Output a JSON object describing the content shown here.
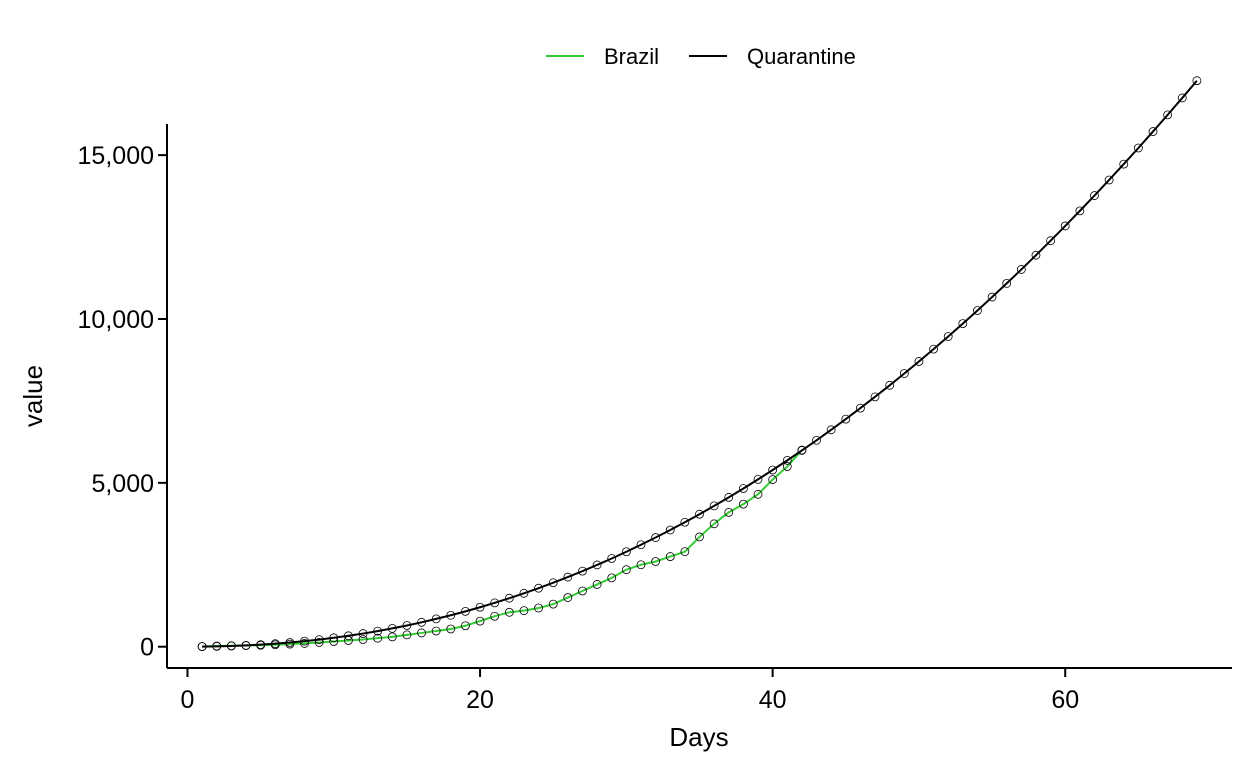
{
  "chart_data": {
    "type": "line",
    "xlabel": "Days",
    "ylabel": "value",
    "xlim": [
      -1.4,
      71.4
    ],
    "ylim": [
      -650,
      15950
    ],
    "x_ticks": [
      0,
      20,
      40,
      60
    ],
    "y_ticks": [
      0,
      5000,
      10000,
      15000
    ],
    "y_tick_labels": [
      "0",
      "5,000",
      "10,000",
      "15,000"
    ],
    "legend": {
      "position": "top",
      "entries": [
        "Brazil",
        "Quarantine"
      ]
    },
    "grid": false,
    "markers": "open-circle",
    "series": [
      {
        "name": "Brazil",
        "color": "#33cc33",
        "x": [
          1,
          2,
          3,
          4,
          5,
          6,
          7,
          8,
          9,
          10,
          11,
          12,
          13,
          14,
          15,
          16,
          17,
          18,
          19,
          20,
          21,
          22,
          23,
          24,
          25,
          26,
          27,
          28,
          29,
          30,
          31,
          32,
          33,
          34,
          35,
          36,
          37,
          38,
          39,
          40,
          41,
          42
        ],
        "y": [
          5,
          20,
          30,
          35,
          45,
          60,
          80,
          100,
          130,
          160,
          190,
          220,
          260,
          300,
          360,
          420,
          480,
          540,
          640,
          780,
          930,
          1050,
          1100,
          1180,
          1300,
          1500,
          1700,
          1900,
          2100,
          2350,
          2500,
          2600,
          2750,
          2900,
          3350,
          3750,
          4100,
          4350,
          4650,
          5100,
          5500,
          6000
        ]
      },
      {
        "name": "Quarantine",
        "color": "#000000",
        "x": [
          1,
          2,
          3,
          4,
          5,
          6,
          7,
          8,
          9,
          10,
          11,
          12,
          13,
          14,
          15,
          16,
          17,
          18,
          19,
          20,
          21,
          22,
          23,
          24,
          25,
          26,
          27,
          28,
          29,
          30,
          31,
          32,
          33,
          34,
          35,
          36,
          37,
          38,
          39,
          40,
          41,
          42,
          43,
          44,
          45,
          46,
          47,
          48,
          49,
          50,
          51,
          52,
          53,
          54,
          55,
          56,
          57,
          58,
          59,
          60,
          61,
          62,
          63,
          64,
          65,
          66,
          67,
          68,
          69
        ],
        "y": [
          3,
          10,
          22,
          40,
          63,
          92,
          128,
          169,
          217,
          272,
          333,
          401,
          476,
          558,
          647,
          744,
          848,
          959,
          1078,
          1204,
          1338,
          1480,
          1629,
          1786,
          1952,
          2125,
          2306,
          2495,
          2692,
          2897,
          3110,
          3331,
          3560,
          3798,
          4043,
          4296,
          4558,
          4828,
          5105,
          5392,
          5686,
          5989,
          6299,
          6618,
          6945,
          7281,
          7624,
          7976,
          8336,
          8704,
          9081,
          9465,
          9858,
          10259,
          10669,
          11086,
          11512,
          11947,
          12389,
          12840,
          13299,
          13766,
          14242,
          14726,
          15218,
          15719,
          16228,
          16745,
          17271
        ]
      }
    ]
  }
}
